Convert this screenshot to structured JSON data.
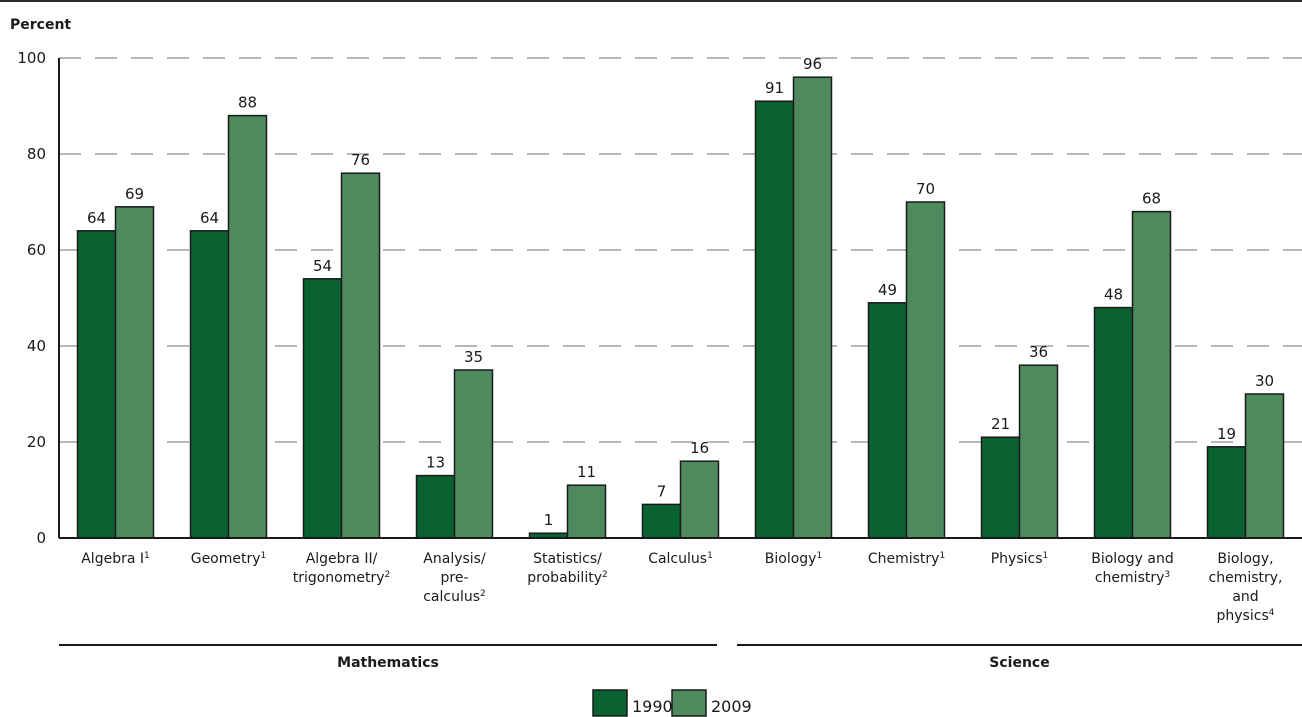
{
  "chart_data": {
    "type": "bar",
    "ylabel": "Percent",
    "ylim": [
      0,
      100
    ],
    "yticks": [
      0,
      20,
      40,
      60,
      80,
      100
    ],
    "grid": "dashed horizontal",
    "categories": [
      [
        "Algebra I",
        "1"
      ],
      [
        "Geometry",
        "1"
      ],
      [
        "Algebra II/",
        "trigonometry",
        "2"
      ],
      [
        "Analysis/",
        "pre-",
        "calculus",
        "2"
      ],
      [
        "Statistics/",
        "probability",
        "2"
      ],
      [
        "Calculus",
        "1"
      ],
      [
        "Biology",
        "1"
      ],
      [
        "Chemistry",
        "1"
      ],
      [
        "Physics",
        "1"
      ],
      [
        "Biology and",
        "chemistry",
        "3"
      ],
      [
        "Biology,",
        "chemistry,",
        "and",
        "physics",
        "4"
      ]
    ],
    "series": [
      {
        "name": "1990",
        "color": "#0b6231",
        "values": [
          64,
          64,
          54,
          13,
          1,
          7,
          91,
          49,
          21,
          48,
          19
        ]
      },
      {
        "name": "2009",
        "color": "#4f8a5e",
        "values": [
          69,
          88,
          76,
          35,
          11,
          16,
          96,
          70,
          36,
          68,
          30
        ]
      }
    ],
    "groups": [
      {
        "label": "Mathematics",
        "from": 0,
        "to": 5
      },
      {
        "label": "Science",
        "from": 6,
        "to": 10
      }
    ],
    "legend": "bottom-center"
  }
}
